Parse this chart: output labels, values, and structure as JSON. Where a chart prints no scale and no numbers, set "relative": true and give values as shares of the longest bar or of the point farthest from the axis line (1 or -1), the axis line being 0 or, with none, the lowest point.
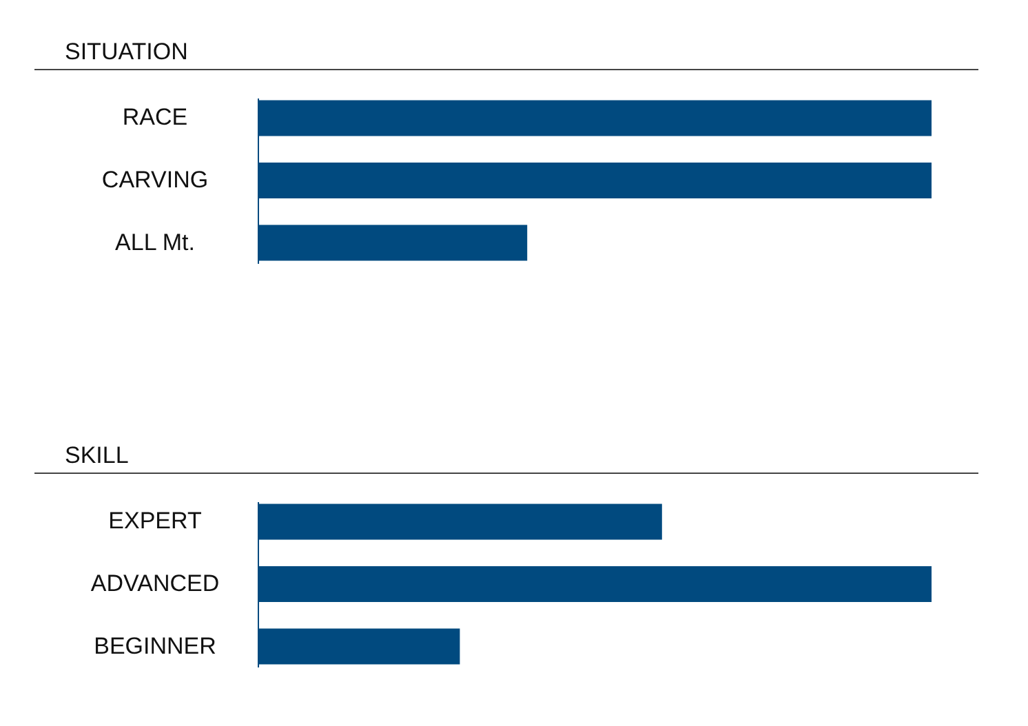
{
  "chart_data": [
    {
      "type": "bar",
      "orientation": "horizontal",
      "relative": true,
      "title": "SITUATION",
      "categories": [
        "RACE",
        "CARVING",
        "ALL Mt."
      ],
      "values": [
        1,
        1,
        0.4
      ],
      "color": "#014a7f",
      "grid": false
    },
    {
      "type": "bar",
      "orientation": "horizontal",
      "relative": true,
      "title": "SKILL",
      "categories": [
        "EXPERT",
        "ADVANCED",
        "BEGINNER"
      ],
      "values": [
        0.6,
        1,
        0.3
      ],
      "color": "#014a7f",
      "grid": false
    }
  ]
}
